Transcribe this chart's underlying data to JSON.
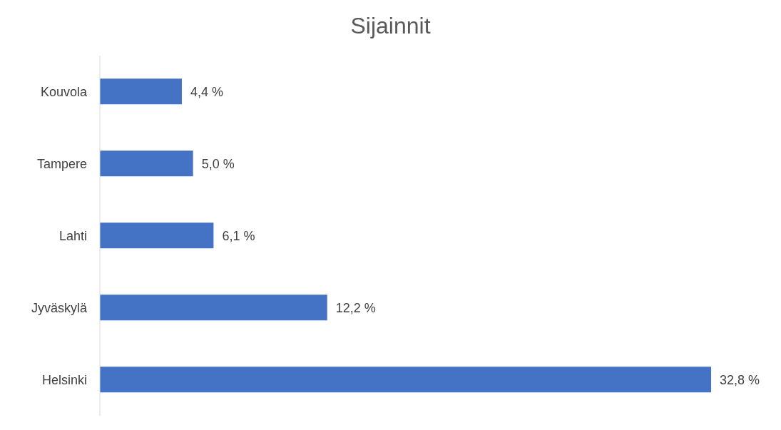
{
  "chart_data": {
    "type": "bar",
    "orientation": "horizontal",
    "title": "Sijainnit",
    "categories": [
      "Kouvola",
      "Tampere",
      "Lahti",
      "Jyväskylä",
      "Helsinki"
    ],
    "values": [
      4.4,
      5.0,
      6.1,
      12.2,
      32.8
    ],
    "value_labels": [
      "4,4 %",
      "5,0 %",
      "6,1 %",
      "12,2 %",
      "32,8 %"
    ],
    "color": "#4472c4"
  }
}
